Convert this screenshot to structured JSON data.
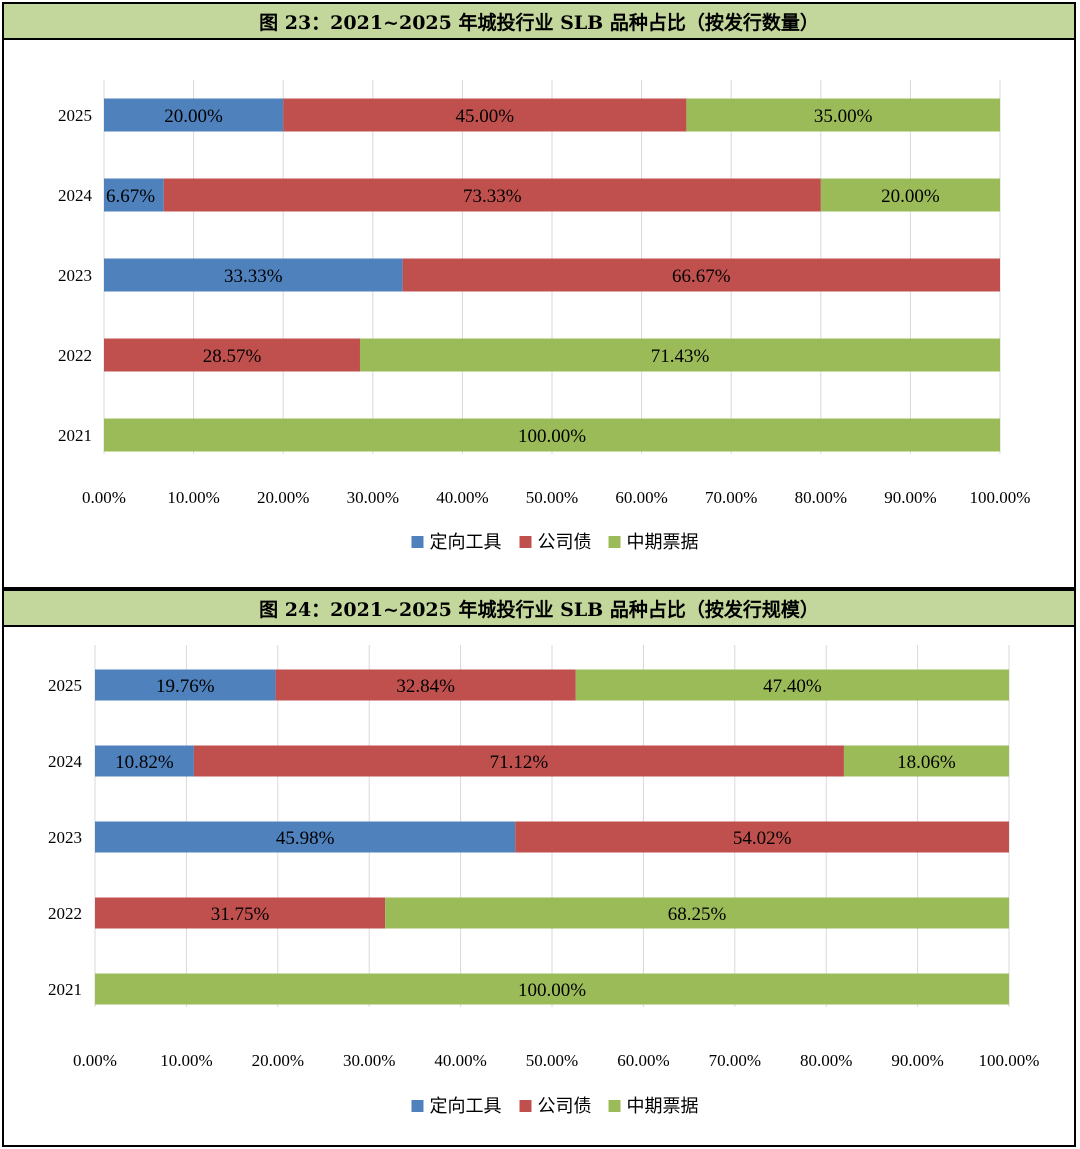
{
  "colors": {
    "定向工具": "#4f81bd",
    "公司债": "#c0504d",
    "中期票据": "#9bbb59"
  },
  "chart_data": [
    {
      "type": "bar",
      "orientation": "horizontal-stacked-100",
      "title": "图 23：2021~2025 年城投行业 SLB 品种占比（按发行数量）",
      "categories": [
        "2025",
        "2024",
        "2023",
        "2022",
        "2021"
      ],
      "series": [
        {
          "name": "定向工具",
          "values": [
            20.0,
            6.67,
            33.33,
            0,
            0
          ]
        },
        {
          "name": "公司债",
          "values": [
            45.0,
            73.33,
            66.67,
            28.57,
            0
          ]
        },
        {
          "name": "中期票据",
          "values": [
            35.0,
            20.0,
            0,
            71.43,
            100.0
          ]
        }
      ],
      "data_labels": [
        [
          "20.00%",
          "45.00%",
          "35.00%"
        ],
        [
          "6.67%",
          "73.33%",
          "20.00%"
        ],
        [
          "33.33%",
          "66.67%",
          null
        ],
        [
          null,
          "28.57%",
          "71.43%"
        ],
        [
          null,
          null,
          "100.00%"
        ]
      ],
      "xlim": [
        0,
        100
      ],
      "xticks": [
        "0.00%",
        "10.00%",
        "20.00%",
        "30.00%",
        "40.00%",
        "50.00%",
        "60.00%",
        "70.00%",
        "80.00%",
        "90.00%",
        "100.00%"
      ],
      "grid": true,
      "legend": "bottom"
    },
    {
      "type": "bar",
      "orientation": "horizontal-stacked-100",
      "title": "图 24：2021~2025 年城投行业 SLB 品种占比（按发行规模）",
      "categories": [
        "2025",
        "2024",
        "2023",
        "2022",
        "2021"
      ],
      "series": [
        {
          "name": "定向工具",
          "values": [
            19.76,
            10.82,
            45.98,
            0,
            0
          ]
        },
        {
          "name": "公司债",
          "values": [
            32.84,
            71.12,
            54.02,
            31.75,
            0
          ]
        },
        {
          "name": "中期票据",
          "values": [
            47.4,
            18.06,
            0,
            68.25,
            100.0
          ]
        }
      ],
      "data_labels": [
        [
          "19.76%",
          "32.84%",
          "47.40%"
        ],
        [
          "10.82%",
          "71.12%",
          "18.06%"
        ],
        [
          "45.98%",
          "54.02%",
          null
        ],
        [
          null,
          "31.75%",
          "68.25%"
        ],
        [
          null,
          null,
          "100.00%"
        ]
      ],
      "xlim": [
        0,
        100
      ],
      "xticks": [
        "0.00%",
        "10.00%",
        "20.00%",
        "30.00%",
        "40.00%",
        "50.00%",
        "60.00%",
        "70.00%",
        "80.00%",
        "90.00%",
        "100.00%"
      ],
      "grid": true,
      "legend": "bottom"
    }
  ]
}
